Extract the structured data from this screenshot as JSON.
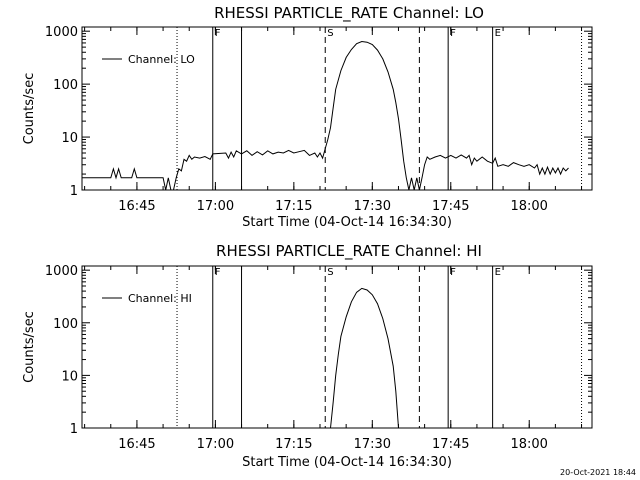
{
  "timestamp": "20-Oct-2021 18:44",
  "chart_data": [
    {
      "type": "line",
      "title": "RHESSI PARTICLE_RATE Channel: LO",
      "xlabel": "Start Time (04-Oct-14 16:34:30)",
      "ylabel": "Counts/sec",
      "x_ticks": [
        "16:45",
        "17:00",
        "17:15",
        "17:30",
        "17:45",
        "18:00"
      ],
      "y_ticks": [
        "1",
        "10",
        "100",
        "1000"
      ],
      "y_scale": "log",
      "xlim": [
        "16:34:30",
        "18:12:00"
      ],
      "ylim": [
        1,
        1200
      ],
      "legend": "Channel: LO",
      "legend_position": "top-left",
      "markers": [
        {
          "time": "16:52:40",
          "style": "dotted",
          "label": ""
        },
        {
          "time": "16:59:30",
          "style": "solid",
          "label": "F"
        },
        {
          "time": "17:05:00",
          "style": "solid",
          "label": ""
        },
        {
          "time": "17:21:00",
          "style": "dashed",
          "label": "S"
        },
        {
          "time": "17:39:00",
          "style": "dashed",
          "label": ""
        },
        {
          "time": "17:44:30",
          "style": "solid",
          "label": "F"
        },
        {
          "time": "17:53:00",
          "style": "solid",
          "label": "E"
        },
        {
          "time": "18:10:00",
          "style": "dotted",
          "label": ""
        }
      ],
      "series": [
        {
          "points": [
            [
              "16:34:30",
              1.7
            ],
            [
              "16:40:00",
              1.7
            ],
            [
              "16:40:30",
              2.5
            ],
            [
              "16:41:00",
              1.7
            ],
            [
              "16:41:30",
              2.5
            ],
            [
              "16:42:00",
              1.7
            ],
            [
              "16:44:00",
              1.7
            ],
            [
              "16:44:30",
              2.5
            ],
            [
              "16:45:00",
              1.7
            ],
            [
              "16:50:00",
              1.7
            ],
            [
              "16:50:30",
              1.0
            ],
            [
              "16:51:00",
              1.7
            ],
            [
              "16:51:30",
              1.0
            ],
            [
              "16:52:00",
              1.0
            ],
            [
              "16:52:30",
              1.7
            ],
            [
              "16:53:00",
              2.5
            ],
            [
              "16:53:30",
              2.3
            ],
            [
              "16:54:00",
              3.8
            ],
            [
              "16:54:30",
              3.5
            ],
            [
              "16:55:00",
              4.5
            ],
            [
              "16:55:30",
              3.8
            ],
            [
              "16:56:00",
              4.2
            ],
            [
              "16:57:00",
              4.0
            ],
            [
              "16:58:00",
              4.3
            ],
            [
              "16:59:00",
              3.8
            ],
            [
              "16:59:30",
              4.8
            ],
            [
              "17:02:00",
              5.0
            ],
            [
              "17:02:30",
              4.0
            ],
            [
              "17:03:00",
              5.2
            ],
            [
              "17:03:30",
              4.2
            ],
            [
              "17:04:00",
              5.5
            ],
            [
              "17:05:00",
              4.8
            ],
            [
              "17:06:00",
              5.5
            ],
            [
              "17:07:00",
              4.5
            ],
            [
              "17:08:00",
              5.3
            ],
            [
              "17:09:00",
              4.6
            ],
            [
              "17:10:00",
              5.5
            ],
            [
              "17:11:00",
              4.8
            ],
            [
              "17:12:00",
              5.2
            ],
            [
              "17:13:00",
              5.0
            ],
            [
              "17:14:00",
              5.6
            ],
            [
              "17:15:00",
              5.0
            ],
            [
              "17:16:00",
              5.3
            ],
            [
              "17:17:00",
              5.6
            ],
            [
              "17:18:00",
              4.5
            ],
            [
              "17:19:00",
              5.0
            ],
            [
              "17:19:30",
              4.2
            ],
            [
              "17:20:00",
              5.0
            ],
            [
              "17:20:30",
              4.0
            ],
            [
              "17:21:00",
              6.0
            ],
            [
              "17:21:30",
              9.0
            ],
            [
              "17:22:00",
              15
            ],
            [
              "17:22:30",
              35
            ],
            [
              "17:23:00",
              80
            ],
            [
              "17:24:00",
              180
            ],
            [
              "17:25:00",
              320
            ],
            [
              "17:26:00",
              450
            ],
            [
              "17:27:00",
              580
            ],
            [
              "17:28:00",
              640
            ],
            [
              "17:29:00",
              620
            ],
            [
              "17:30:00",
              560
            ],
            [
              "17:31:00",
              440
            ],
            [
              "17:32:00",
              300
            ],
            [
              "17:33:00",
              170
            ],
            [
              "17:34:00",
              80
            ],
            [
              "17:34:30",
              45
            ],
            [
              "17:35:00",
              22
            ],
            [
              "17:35:30",
              9
            ],
            [
              "17:36:00",
              3.5
            ],
            [
              "17:36:30",
              1.7
            ],
            [
              "17:37:00",
              1.0
            ],
            [
              "17:37:30",
              1.7
            ],
            [
              "17:38:00",
              1.0
            ],
            [
              "17:38:30",
              1.7
            ],
            [
              "17:39:00",
              1.0
            ],
            [
              "17:39:30",
              1.7
            ],
            [
              "17:40:00",
              3.0
            ],
            [
              "17:40:30",
              4.2
            ],
            [
              "17:41:00",
              3.8
            ],
            [
              "17:42:00",
              4.2
            ],
            [
              "17:43:00",
              4.5
            ],
            [
              "17:44:00",
              4.0
            ],
            [
              "17:45:00",
              4.5
            ],
            [
              "17:46:00",
              4.0
            ],
            [
              "17:47:00",
              4.6
            ],
            [
              "17:48:00",
              4.0
            ],
            [
              "17:48:30",
              4.5
            ],
            [
              "17:49:00",
              3.0
            ],
            [
              "17:49:30",
              4.0
            ],
            [
              "17:50:00",
              3.5
            ],
            [
              "17:51:00",
              4.2
            ],
            [
              "17:52:00",
              3.5
            ],
            [
              "17:53:00",
              3.2
            ],
            [
              "17:53:30",
              4.0
            ],
            [
              "17:54:00",
              2.8
            ],
            [
              "17:55:00",
              3.0
            ],
            [
              "17:56:00",
              2.8
            ],
            [
              "17:57:00",
              3.3
            ],
            [
              "17:58:00",
              3.0
            ],
            [
              "17:59:00",
              2.8
            ],
            [
              "18:00:00",
              3.0
            ],
            [
              "18:01:00",
              2.6
            ],
            [
              "18:01:30",
              3.0
            ],
            [
              "18:02:00",
              2.0
            ],
            [
              "18:02:30",
              2.6
            ],
            [
              "18:03:00",
              2.0
            ],
            [
              "18:03:30",
              2.7
            ],
            [
              "18:04:00",
              2.0
            ],
            [
              "18:04:30",
              2.6
            ],
            [
              "18:05:00",
              2.1
            ],
            [
              "18:05:30",
              2.6
            ],
            [
              "18:06:00",
              2.0
            ],
            [
              "18:06:30",
              2.6
            ],
            [
              "18:07:00",
              2.3
            ],
            [
              "18:07:30",
              2.6
            ]
          ]
        }
      ]
    },
    {
      "type": "line",
      "title": "RHESSI PARTICLE_RATE Channel: HI",
      "xlabel": "Start Time (04-Oct-14 16:34:30)",
      "ylabel": "Counts/sec",
      "x_ticks": [
        "16:45",
        "17:00",
        "17:15",
        "17:30",
        "17:45",
        "18:00"
      ],
      "y_ticks": [
        "1",
        "10",
        "100",
        "1000"
      ],
      "y_scale": "log",
      "xlim": [
        "16:34:30",
        "18:12:00"
      ],
      "ylim": [
        1,
        1200
      ],
      "legend": "Channel: HI",
      "legend_position": "top-left",
      "markers": [
        {
          "time": "16:52:40",
          "style": "dotted",
          "label": ""
        },
        {
          "time": "16:59:30",
          "style": "solid",
          "label": "F"
        },
        {
          "time": "17:05:00",
          "style": "solid",
          "label": ""
        },
        {
          "time": "17:21:00",
          "style": "dashed",
          "label": "S"
        },
        {
          "time": "17:39:00",
          "style": "dashed",
          "label": ""
        },
        {
          "time": "17:44:30",
          "style": "solid",
          "label": "F"
        },
        {
          "time": "17:53:00",
          "style": "solid",
          "label": "E"
        },
        {
          "time": "18:10:00",
          "style": "dotted",
          "label": ""
        }
      ],
      "series": [
        {
          "points": [
            [
              "17:22:00",
              1.0
            ],
            [
              "17:22:30",
              3.0
            ],
            [
              "17:23:00",
              10
            ],
            [
              "17:23:30",
              25
            ],
            [
              "17:24:00",
              55
            ],
            [
              "17:25:00",
              130
            ],
            [
              "17:26:00",
              250
            ],
            [
              "17:27:00",
              380
            ],
            [
              "17:28:00",
              450
            ],
            [
              "17:29:00",
              420
            ],
            [
              "17:30:00",
              340
            ],
            [
              "17:31:00",
              230
            ],
            [
              "17:32:00",
              120
            ],
            [
              "17:33:00",
              50
            ],
            [
              "17:34:00",
              15
            ],
            [
              "17:34:30",
              5
            ],
            [
              "17:35:00",
              1.0
            ]
          ]
        }
      ]
    }
  ]
}
